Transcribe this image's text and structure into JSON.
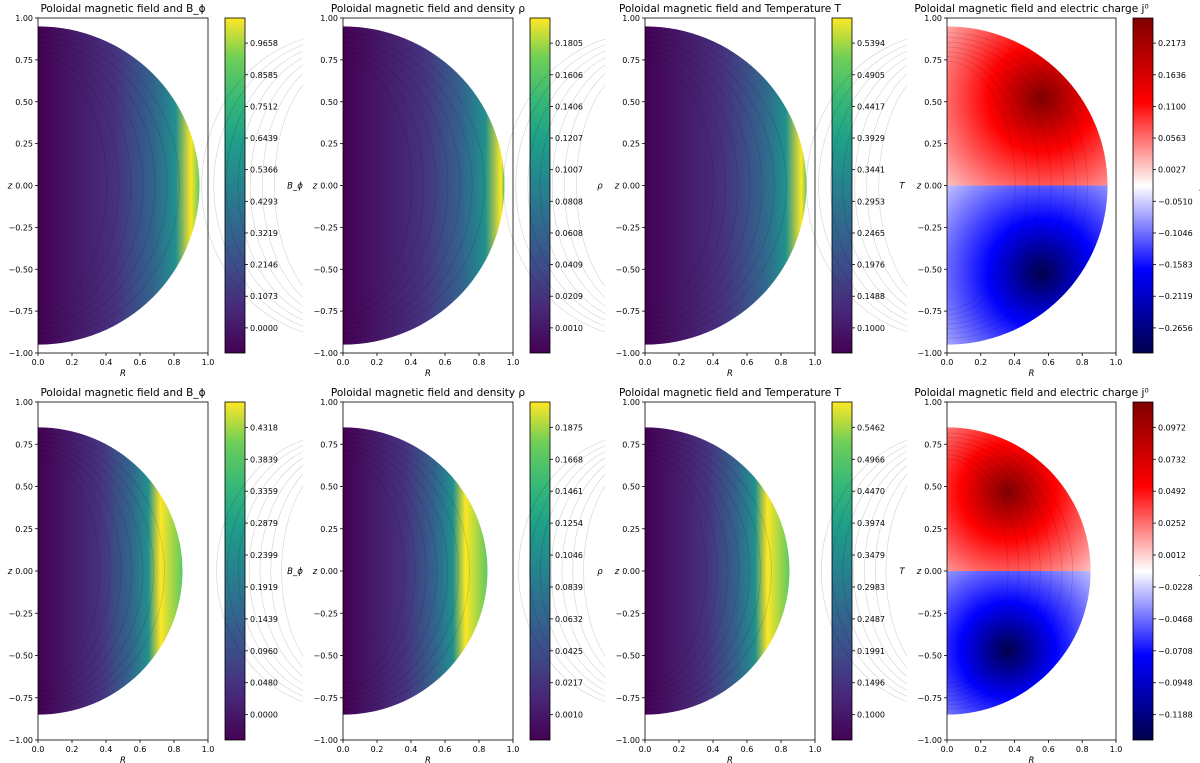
{
  "chart_data": [
    {
      "type": "heatmap",
      "title": "Poloidal magnetic field and B_ϕ",
      "cbar_label": "B_ϕ",
      "colormap": "viridis",
      "domain_radius": 0.95,
      "peak_r": 0.9,
      "xlabel": "R",
      "ylabel": "z",
      "xlim": [
        0.0,
        1.0
      ],
      "ylim": [
        -1.0,
        1.0
      ],
      "xticks": [
        "0.0",
        "0.2",
        "0.4",
        "0.6",
        "0.8",
        "1.0"
      ],
      "yticks": [
        "1.00",
        "0.75",
        "0.50",
        "0.25",
        "0.00",
        "−0.25",
        "−0.50",
        "−0.75",
        "−1.00"
      ],
      "cbar_ticks": [
        "0.9658",
        "0.8585",
        "0.7512",
        "0.6439",
        "0.5366",
        "0.4293",
        "0.3219",
        "0.2146",
        "0.1073",
        "0.0000"
      ]
    },
    {
      "type": "heatmap",
      "title": "Poloidal magnetic field and density ρ",
      "cbar_label": "ρ",
      "colormap": "viridis",
      "domain_radius": 0.95,
      "peak_r": 0.93,
      "xlabel": "R",
      "ylabel": "z",
      "xlim": [
        0.0,
        1.0
      ],
      "ylim": [
        -1.0,
        1.0
      ],
      "xticks": [
        "0.0",
        "0.2",
        "0.4",
        "0.6",
        "0.8",
        "1.0"
      ],
      "yticks": [
        "1.00",
        "0.75",
        "0.50",
        "0.25",
        "0.00",
        "−0.25",
        "−0.50",
        "−0.75",
        "−1.00"
      ],
      "cbar_ticks": [
        "0.1805",
        "0.1606",
        "0.1406",
        "0.1207",
        "0.1007",
        "0.0808",
        "0.0608",
        "0.0409",
        "0.0209",
        "0.0010"
      ]
    },
    {
      "type": "heatmap",
      "title": "Poloidal magnetic field and Temperature T",
      "cbar_label": "T",
      "colormap": "viridis",
      "domain_radius": 0.95,
      "peak_r": 0.92,
      "xlabel": "R",
      "ylabel": "z",
      "xlim": [
        0.0,
        1.0
      ],
      "ylim": [
        -1.0,
        1.0
      ],
      "xticks": [
        "0.0",
        "0.2",
        "0.4",
        "0.6",
        "0.8",
        "1.0"
      ],
      "yticks": [
        "1.00",
        "0.75",
        "0.50",
        "0.25",
        "0.00",
        "−0.25",
        "−0.50",
        "−0.75",
        "−1.00"
      ],
      "cbar_ticks": [
        "0.5394",
        "0.4905",
        "0.4417",
        "0.3929",
        "0.3441",
        "0.2953",
        "0.2465",
        "0.1976",
        "0.1488",
        "0.1000"
      ]
    },
    {
      "type": "heatmap",
      "title": "Poloidal magnetic field and electric charge j⁰",
      "cbar_label": "j⁰",
      "colormap": "seismic",
      "domain_radius": 0.95,
      "peak_r": 0.7,
      "xlabel": "R",
      "ylabel": "z",
      "xlim": [
        0.0,
        1.0
      ],
      "ylim": [
        -1.0,
        1.0
      ],
      "xticks": [
        "0.0",
        "0.2",
        "0.4",
        "0.6",
        "0.8",
        "1.0"
      ],
      "yticks": [
        "1.00",
        "0.75",
        "0.50",
        "0.25",
        "0.00",
        "−0.25",
        "−0.50",
        "−0.75",
        "−1.00"
      ],
      "cbar_ticks": [
        "0.2173",
        "0.1636",
        "0.1100",
        "0.0563",
        "0.0027",
        "−0.0510",
        "−0.1046",
        "−0.1583",
        "−0.2119",
        "−0.2656"
      ]
    },
    {
      "type": "heatmap",
      "title": "Poloidal magnetic field and B_ϕ",
      "cbar_label": "B_ϕ",
      "colormap": "viridis",
      "domain_radius": 0.85,
      "peak_r": 0.72,
      "xlabel": "R",
      "ylabel": "z",
      "xlim": [
        0.0,
        1.0
      ],
      "ylim": [
        -1.0,
        1.0
      ],
      "xticks": [
        "0.0",
        "0.2",
        "0.4",
        "0.6",
        "0.8",
        "1.0"
      ],
      "yticks": [
        "1.00",
        "0.75",
        "0.50",
        "0.25",
        "0.00",
        "−0.25",
        "−0.50",
        "−0.75",
        "−1.00"
      ],
      "cbar_ticks": [
        "0.4318",
        "0.3839",
        "0.3359",
        "0.2879",
        "0.2399",
        "0.1919",
        "0.1439",
        "0.0960",
        "0.0480",
        "0.0000"
      ]
    },
    {
      "type": "heatmap",
      "title": "Poloidal magnetic field and density ρ",
      "cbar_label": "ρ",
      "colormap": "viridis",
      "domain_radius": 0.85,
      "peak_r": 0.72,
      "xlabel": "R",
      "ylabel": "z",
      "xlim": [
        0.0,
        1.0
      ],
      "ylim": [
        -1.0,
        1.0
      ],
      "xticks": [
        "0.0",
        "0.2",
        "0.4",
        "0.6",
        "0.8",
        "1.0"
      ],
      "yticks": [
        "1.00",
        "0.75",
        "0.50",
        "0.25",
        "0.00",
        "−0.25",
        "−0.50",
        "−0.75",
        "−1.00"
      ],
      "cbar_ticks": [
        "0.1875",
        "0.1668",
        "0.1461",
        "0.1254",
        "0.1046",
        "0.0839",
        "0.0632",
        "0.0425",
        "0.0217",
        "0.0010"
      ]
    },
    {
      "type": "heatmap",
      "title": "Poloidal magnetic field and Temperature T",
      "cbar_label": "T",
      "colormap": "viridis",
      "domain_radius": 0.85,
      "peak_r": 0.72,
      "xlabel": "R",
      "ylabel": "z",
      "xlim": [
        0.0,
        1.0
      ],
      "ylim": [
        -1.0,
        1.0
      ],
      "xticks": [
        "0.0",
        "0.2",
        "0.4",
        "0.6",
        "0.8",
        "1.0"
      ],
      "yticks": [
        "1.00",
        "0.75",
        "0.50",
        "0.25",
        "0.00",
        "−0.25",
        "−0.50",
        "−0.75",
        "−1.00"
      ],
      "cbar_ticks": [
        "0.5462",
        "0.4966",
        "0.4470",
        "0.3974",
        "0.3479",
        "0.2983",
        "0.2487",
        "0.1991",
        "0.1496",
        "0.1000"
      ]
    },
    {
      "type": "heatmap",
      "title": "Poloidal magnetic field and electric charge j⁰",
      "cbar_label": "j⁰",
      "colormap": "seismic",
      "domain_radius": 0.85,
      "peak_r": 0.45,
      "xlabel": "R",
      "ylabel": "z",
      "xlim": [
        0.0,
        1.0
      ],
      "ylim": [
        -1.0,
        1.0
      ],
      "xticks": [
        "0.0",
        "0.2",
        "0.4",
        "0.6",
        "0.8",
        "1.0"
      ],
      "yticks": [
        "1.00",
        "0.75",
        "0.50",
        "0.25",
        "0.00",
        "−0.25",
        "−0.50",
        "−0.75",
        "−1.00"
      ],
      "cbar_ticks": [
        "0.0972",
        "0.0732",
        "0.0492",
        "0.0252",
        "0.0012",
        "−0.0228",
        "−0.0468",
        "−0.0708",
        "−0.0948",
        "−0.1188"
      ]
    }
  ]
}
